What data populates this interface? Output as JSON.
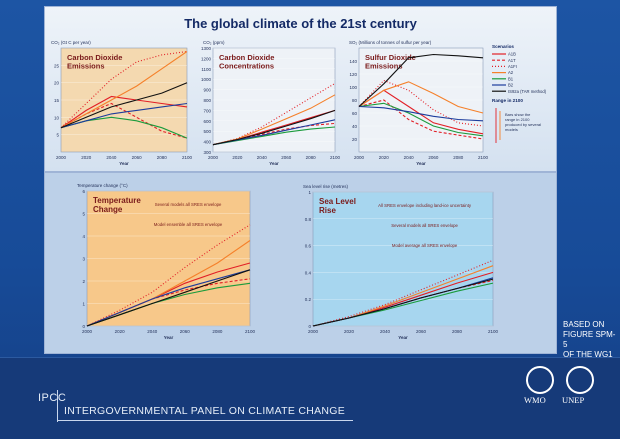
{
  "header": {
    "title": "The global climate of the 21st century"
  },
  "source_note": [
    "BASED ON",
    "FIGURE SPM-5",
    "OF THE WG1"
  ],
  "footer": {
    "short": "IPCC",
    "full": "INTERGOVERNMENTAL PANEL ON CLIMATE CHANGE",
    "logos": [
      "WMO",
      "UNEP"
    ]
  },
  "colors": {
    "A1B": "#e21f26",
    "A1T": "#e21f26",
    "A1FI": "#e21f26",
    "A2": "#f5802a",
    "B1": "#1a9b3c",
    "B2": "#1c3c9c",
    "IS92a": "#111111"
  },
  "legend": {
    "title": "Scenarios",
    "entries": [
      {
        "name": "A1B",
        "color": "#e21f26",
        "dash": ""
      },
      {
        "name": "A1T",
        "color": "#e21f26",
        "dash": "3,2"
      },
      {
        "name": "A1FI",
        "color": "#e21f26",
        "dash": "1,2"
      },
      {
        "name": "A2",
        "color": "#f5802a",
        "dash": ""
      },
      {
        "name": "B1",
        "color": "#1a9b3c",
        "dash": ""
      },
      {
        "name": "B2",
        "color": "#1c3c9c",
        "dash": ""
      },
      {
        "name": "IS92a (TAR method)",
        "color": "#111111",
        "dash": ""
      }
    ],
    "range_title": "Range in 2100",
    "range_note": "Bars show the range in 2100 produced by several models"
  },
  "chart_data": [
    {
      "type": "line",
      "title": "Carbon Dioxide Emissions",
      "ylabel": "CO₂ (Gt C per year)",
      "xlabel": "Year",
      "x": [
        2000,
        2020,
        2040,
        2060,
        2080,
        2100
      ],
      "ylim": [
        0,
        30
      ],
      "yticks": [
        5,
        10,
        15,
        20,
        25
      ],
      "series": [
        {
          "name": "A1B",
          "values": [
            7,
            12,
            16,
            15,
            14,
            13
          ]
        },
        {
          "name": "A1T",
          "values": [
            7,
            11,
            14,
            10,
            6,
            4
          ]
        },
        {
          "name": "A1FI",
          "values": [
            7,
            14,
            21,
            26,
            28,
            29
          ]
        },
        {
          "name": "A2",
          "values": [
            7,
            11,
            15,
            19,
            24,
            29
          ]
        },
        {
          "name": "B1",
          "values": [
            7,
            9,
            10,
            9,
            7,
            4
          ]
        },
        {
          "name": "B2",
          "values": [
            7,
            9,
            11,
            12,
            13,
            14
          ]
        },
        {
          "name": "IS92a",
          "values": [
            7,
            10,
            13,
            15,
            17,
            20
          ]
        }
      ]
    },
    {
      "type": "line",
      "title": "Carbon Dioxide Concentrations",
      "ylabel": "CO₂ (ppm)",
      "xlabel": "Year",
      "x": [
        2000,
        2020,
        2040,
        2060,
        2080,
        2100
      ],
      "ylim": [
        300,
        1300
      ],
      "yticks": [
        300,
        400,
        500,
        600,
        700,
        800,
        900,
        1000,
        1100,
        1200,
        1300
      ],
      "series": [
        {
          "name": "A1B",
          "values": [
            370,
            420,
            490,
            560,
            630,
            700
          ]
        },
        {
          "name": "A1T",
          "values": [
            370,
            415,
            470,
            520,
            555,
            575
          ]
        },
        {
          "name": "A1FI",
          "values": [
            370,
            430,
            540,
            680,
            820,
            960
          ]
        },
        {
          "name": "A2",
          "values": [
            370,
            425,
            520,
            620,
            720,
            850
          ]
        },
        {
          "name": "B1",
          "values": [
            370,
            410,
            450,
            490,
            520,
            540
          ]
        },
        {
          "name": "B2",
          "values": [
            370,
            415,
            460,
            510,
            560,
            610
          ]
        },
        {
          "name": "IS92a",
          "values": [
            370,
            420,
            480,
            550,
            620,
            700
          ]
        }
      ]
    },
    {
      "type": "line",
      "title": "Sulfur Dioxide Emissions",
      "ylabel": "SO₂ (Millions of tonnes of sulfur per year)",
      "xlabel": "Year",
      "x": [
        2000,
        2020,
        2040,
        2060,
        2080,
        2100
      ],
      "ylim": [
        0,
        160
      ],
      "yticks": [
        20,
        40,
        60,
        80,
        100,
        120,
        140
      ],
      "series": [
        {
          "name": "A1B",
          "values": [
            70,
            95,
            70,
            45,
            35,
            28
          ]
        },
        {
          "name": "A1T",
          "values": [
            70,
            80,
            50,
            32,
            26,
            20
          ]
        },
        {
          "name": "A1FI",
          "values": [
            70,
            110,
            95,
            65,
            45,
            40
          ]
        },
        {
          "name": "A2",
          "values": [
            70,
            95,
            108,
            90,
            70,
            60
          ]
        },
        {
          "name": "B1",
          "values": [
            70,
            75,
            60,
            40,
            30,
            25
          ]
        },
        {
          "name": "B2",
          "values": [
            70,
            68,
            62,
            55,
            50,
            48
          ]
        },
        {
          "name": "IS92a",
          "values": [
            70,
            105,
            145,
            150,
            148,
            145
          ]
        }
      ]
    },
    {
      "type": "line",
      "title": "Temperature Change",
      "ylabel": "Temperature change (°C)",
      "xlabel": "Year",
      "x": [
        2000,
        2020,
        2040,
        2060,
        2080,
        2100
      ],
      "ylim": [
        0,
        6
      ],
      "yticks": [
        0,
        1,
        2,
        3,
        4,
        5,
        6
      ],
      "annotations": [
        "Several models all SRES envelope",
        "Model ensemble all SRES envelope"
      ],
      "series": [
        {
          "name": "A1B",
          "values": [
            0,
            0.6,
            1.2,
            1.9,
            2.4,
            2.8
          ]
        },
        {
          "name": "A1T",
          "values": [
            0,
            0.6,
            1.2,
            1.6,
            1.9,
            2.1
          ]
        },
        {
          "name": "A1FI",
          "values": [
            0,
            0.7,
            1.5,
            2.6,
            3.6,
            4.5
          ]
        },
        {
          "name": "A2",
          "values": [
            0,
            0.6,
            1.2,
            2.0,
            2.8,
            3.8
          ]
        },
        {
          "name": "B1",
          "values": [
            0,
            0.5,
            1.0,
            1.4,
            1.7,
            1.9
          ]
        },
        {
          "name": "B2",
          "values": [
            0,
            0.6,
            1.2,
            1.7,
            2.1,
            2.5
          ]
        },
        {
          "name": "IS92a",
          "values": [
            0,
            0.5,
            1.0,
            1.5,
            2.0,
            2.5
          ]
        }
      ]
    },
    {
      "type": "line",
      "title": "Sea Level Rise",
      "ylabel": "Sea level rise (metres)",
      "xlabel": "Year",
      "x": [
        2000,
        2020,
        2040,
        2060,
        2080,
        2100
      ],
      "ylim": [
        0,
        1.0
      ],
      "yticks": [
        0,
        0.2,
        0.4,
        0.6,
        0.8,
        1.0
      ],
      "annotations": [
        "All SRES envelope including land-ice uncertainty",
        "Several models all SRES envelope",
        "Model average all SRES envelope"
      ],
      "series": [
        {
          "name": "A1B",
          "values": [
            0,
            0.06,
            0.14,
            0.23,
            0.32,
            0.4
          ]
        },
        {
          "name": "A1T",
          "values": [
            0,
            0.06,
            0.13,
            0.21,
            0.28,
            0.34
          ]
        },
        {
          "name": "A1FI",
          "values": [
            0,
            0.07,
            0.16,
            0.27,
            0.38,
            0.49
          ]
        },
        {
          "name": "A2",
          "values": [
            0,
            0.06,
            0.15,
            0.25,
            0.35,
            0.45
          ]
        },
        {
          "name": "B1",
          "values": [
            0,
            0.06,
            0.12,
            0.19,
            0.26,
            0.32
          ]
        },
        {
          "name": "B2",
          "values": [
            0,
            0.06,
            0.13,
            0.21,
            0.28,
            0.36
          ]
        },
        {
          "name": "IS92a",
          "values": [
            0,
            0.06,
            0.13,
            0.21,
            0.28,
            0.35
          ]
        }
      ]
    }
  ]
}
